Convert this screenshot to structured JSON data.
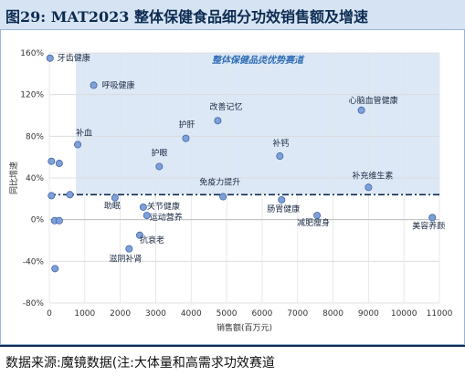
{
  "header": {
    "title": "图29:  MAT2023 整体保健食品细分功效销售额及增速"
  },
  "footer": {
    "source": "数据来源:魔镜数据(注:大体量和高需求功效赛道"
  },
  "chart_data": {
    "type": "scatter",
    "title": "",
    "xlabel": "销售额(百万元)",
    "ylabel": "同比增速",
    "xlim": [
      0,
      11000
    ],
    "ylim": [
      -80,
      160
    ],
    "x_ticks": [
      0,
      1000,
      2000,
      3000,
      4000,
      5000,
      6000,
      7000,
      8000,
      9000,
      10000,
      11000
    ],
    "y_ticks": [
      -80,
      -40,
      0,
      40,
      80,
      120,
      160
    ],
    "y_tick_suffix": "%",
    "grid": true,
    "highlight_band": {
      "label": "整体保健品类优势赛道",
      "y_from": 24,
      "y_to": 160,
      "x_from": 750
    },
    "reference_line_y": 24,
    "point_color": "#7ea0d8",
    "band_color": "#dde8f6",
    "points": [
      {
        "name": "牙齿健康",
        "x": 20,
        "y": 155
      },
      {
        "name": "呼吸健康",
        "x": 1250,
        "y": 129
      },
      {
        "name": "心脑血管健康",
        "x": 8800,
        "y": 105
      },
      {
        "name": "改善记忆",
        "x": 4750,
        "y": 95
      },
      {
        "name": "护肝",
        "x": 3850,
        "y": 78
      },
      {
        "name": "补血",
        "x": 800,
        "y": 72
      },
      {
        "name": "补钙",
        "x": 6500,
        "y": 61
      },
      {
        "name": "护眼",
        "x": 3100,
        "y": 51
      },
      {
        "name": "补充维生素",
        "x": 9000,
        "y": 31
      },
      {
        "name": "免疫力提升",
        "x": 4900,
        "y": 22
      },
      {
        "name": "肠胃健康",
        "x": 6550,
        "y": 19
      },
      {
        "name": "助眠",
        "x": 1850,
        "y": 21
      },
      {
        "name": "关节健康",
        "x": 2650,
        "y": 12
      },
      {
        "name": "运动营养",
        "x": 2750,
        "y": 4
      },
      {
        "name": "减肥瘦身",
        "x": 7550,
        "y": 4
      },
      {
        "name": "美容养颜",
        "x": 10800,
        "y": 2
      },
      {
        "name": "抗衰老",
        "x": 2550,
        "y": -15
      },
      {
        "name": "滋阴补肾",
        "x": 2250,
        "y": -28
      },
      {
        "name": "",
        "x": 60,
        "y": 56
      },
      {
        "name": "",
        "x": 280,
        "y": 54
      },
      {
        "name": "",
        "x": 60,
        "y": 23
      },
      {
        "name": "",
        "x": 580,
        "y": 24
      },
      {
        "name": "",
        "x": 150,
        "y": -1
      },
      {
        "name": "",
        "x": 280,
        "y": -1
      },
      {
        "name": "",
        "x": 160,
        "y": -47
      }
    ]
  }
}
